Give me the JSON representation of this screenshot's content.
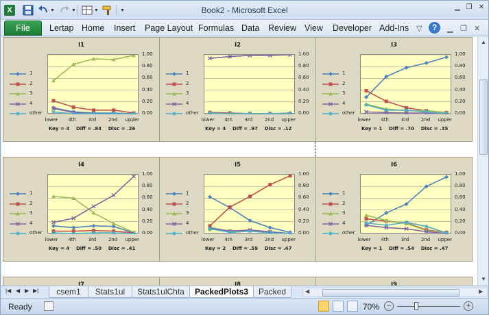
{
  "window": {
    "title": "Book2 - Microsoft Excel",
    "controls": [
      "minimize-icon",
      "restore-icon",
      "close-icon"
    ]
  },
  "quick_access": [
    "save-icon",
    "undo-icon",
    "redo-icon",
    "layout-icon",
    "format-painter-icon"
  ],
  "menu": {
    "file": "File",
    "tabs": [
      "Lertap",
      "Home",
      "Insert",
      "Page Layout",
      "Formulas",
      "Data",
      "Review",
      "View",
      "Developer",
      "Add-Ins"
    ]
  },
  "colors": {
    "series": [
      "#4f81bd",
      "#c0504d",
      "#9bbb59",
      "#8064a2",
      "#4bacc6"
    ],
    "panel": "#ddd9c3",
    "plot": "#ffffc0",
    "file_tab": "#1d7c34"
  },
  "chart_legend": [
    "1",
    "2",
    "3",
    "4",
    "other"
  ],
  "chart_data": [
    {
      "type": "line",
      "title": "I1",
      "x": [
        "lower",
        "4th",
        "3rd",
        "2nd",
        "upper"
      ],
      "ylim": [
        0,
        1
      ],
      "yticks": [
        "1.00",
        "0.80",
        "0.60",
        "0.40",
        "0.20",
        "0.00"
      ],
      "series": [
        {
          "name": "1",
          "values": [
            0.1,
            0.03,
            0.01,
            0.01,
            0.0
          ]
        },
        {
          "name": "2",
          "values": [
            0.22,
            0.11,
            0.06,
            0.06,
            0.01
          ]
        },
        {
          "name": "3",
          "values": [
            0.56,
            0.84,
            0.93,
            0.92,
            0.99
          ]
        },
        {
          "name": "4",
          "values": [
            0.09,
            0.02,
            0.0,
            0.0,
            0.0
          ]
        },
        {
          "name": "other",
          "values": [
            0.03,
            0.0,
            0.0,
            0.0,
            0.0
          ]
        }
      ],
      "stats": "Key = 3    Diff = .84    Disc = .26"
    },
    {
      "type": "line",
      "title": "I2",
      "x": [
        "lower",
        "4th",
        "3rd",
        "2nd",
        "upper"
      ],
      "ylim": [
        0,
        1
      ],
      "yticks": [
        "1.00",
        "0.80",
        "0.60",
        "0.40",
        "0.20",
        "0.00"
      ],
      "series": [
        {
          "name": "1",
          "values": [
            0.02,
            0.01,
            0.0,
            0.0,
            0.01
          ]
        },
        {
          "name": "2",
          "values": [
            0.02,
            0.01,
            0.0,
            0.0,
            0.0
          ]
        },
        {
          "name": "3",
          "values": [
            0.01,
            0.0,
            0.0,
            0.0,
            0.0
          ]
        },
        {
          "name": "4",
          "values": [
            0.94,
            0.97,
            0.99,
            0.99,
            1.0
          ]
        },
        {
          "name": "other",
          "values": [
            0.01,
            0.0,
            0.0,
            0.0,
            0.0
          ]
        }
      ],
      "stats": "Key = 4    Diff = .97    Disc = .12"
    },
    {
      "type": "line",
      "title": "I3",
      "x": [
        "lower",
        "4th",
        "3rd",
        "2nd",
        "upper"
      ],
      "ylim": [
        0,
        1
      ],
      "yticks": [
        "1.00",
        "0.80",
        "0.60",
        "0.40",
        "0.20",
        "0.00"
      ],
      "series": [
        {
          "name": "1",
          "values": [
            0.28,
            0.63,
            0.78,
            0.86,
            0.96
          ]
        },
        {
          "name": "2",
          "values": [
            0.39,
            0.21,
            0.1,
            0.05,
            0.02
          ]
        },
        {
          "name": "3",
          "values": [
            0.16,
            0.08,
            0.05,
            0.05,
            0.02
          ]
        },
        {
          "name": "4",
          "values": [
            0.03,
            0.02,
            0.01,
            0.01,
            0.0
          ]
        },
        {
          "name": "other",
          "values": [
            0.15,
            0.06,
            0.06,
            0.03,
            0.0
          ]
        }
      ],
      "stats": "Key = 1    Diff = .70    Disc = .35"
    },
    {
      "type": "line",
      "title": "I4",
      "x": [
        "lower",
        "4th",
        "3rd",
        "2nd",
        "upper"
      ],
      "ylim": [
        0,
        1
      ],
      "yticks": [
        "1.00",
        "0.80",
        "0.60",
        "0.40",
        "0.20",
        "0.00"
      ],
      "series": [
        {
          "name": "1",
          "values": [
            0.13,
            0.1,
            0.13,
            0.12,
            0.01
          ]
        },
        {
          "name": "2",
          "values": [
            0.04,
            0.04,
            0.05,
            0.04,
            0.01
          ]
        },
        {
          "name": "3",
          "values": [
            0.63,
            0.6,
            0.35,
            0.17,
            0.02
          ]
        },
        {
          "name": "4",
          "values": [
            0.19,
            0.26,
            0.46,
            0.65,
            0.97
          ]
        },
        {
          "name": "other",
          "values": [
            0.01,
            0.0,
            0.01,
            0.01,
            0.0
          ]
        }
      ],
      "stats": "Key = 4    Diff = .50    Disc = .41"
    },
    {
      "type": "line",
      "title": "I5",
      "x": [
        "lower",
        "4th",
        "3rd",
        "2nd",
        "upper"
      ],
      "ylim": [
        0,
        1
      ],
      "yticks": [
        "1.00",
        "0.80",
        "0.60",
        "0.40",
        "0.20",
        "0.00"
      ],
      "series": [
        {
          "name": "1",
          "values": [
            0.62,
            0.44,
            0.22,
            0.1,
            0.02
          ]
        },
        {
          "name": "2",
          "values": [
            0.13,
            0.45,
            0.63,
            0.83,
            0.98
          ]
        },
        {
          "name": "3",
          "values": [
            0.07,
            0.05,
            0.05,
            0.03,
            0.0
          ]
        },
        {
          "name": "4",
          "values": [
            0.1,
            0.04,
            0.06,
            0.03,
            0.0
          ]
        },
        {
          "name": "other",
          "values": [
            0.08,
            0.02,
            0.04,
            0.01,
            0.0
          ]
        }
      ],
      "stats": "Key = 2    Diff = .59    Disc = .47"
    },
    {
      "type": "line",
      "title": "I6",
      "x": [
        "lower",
        "4th",
        "3rd",
        "2nd",
        "upper"
      ],
      "ylim": [
        0,
        1
      ],
      "yticks": [
        "1.00",
        "0.80",
        "0.60",
        "0.40",
        "0.20",
        "0.00"
      ],
      "series": [
        {
          "name": "1",
          "values": [
            0.14,
            0.35,
            0.5,
            0.8,
            0.96
          ]
        },
        {
          "name": "2",
          "values": [
            0.25,
            0.21,
            0.18,
            0.06,
            0.02
          ]
        },
        {
          "name": "3",
          "values": [
            0.31,
            0.22,
            0.17,
            0.05,
            0.01
          ]
        },
        {
          "name": "4",
          "values": [
            0.14,
            0.1,
            0.08,
            0.03,
            0.0
          ]
        },
        {
          "name": "other",
          "values": [
            0.18,
            0.14,
            0.19,
            0.12,
            0.01
          ]
        }
      ],
      "stats": "Key = 1    Diff = .54    Disc = .47"
    }
  ],
  "next_titles": [
    "I7",
    "I8",
    "I9"
  ],
  "sheet_tabs": {
    "items": [
      "csem1",
      "Stats1ul",
      "Stats1ulChta",
      "PackedPlots3",
      "Packed"
    ],
    "active": "PackedPlots3"
  },
  "status": {
    "ready": "Ready",
    "zoom": "70%",
    "zoom_fraction": 0.3
  }
}
